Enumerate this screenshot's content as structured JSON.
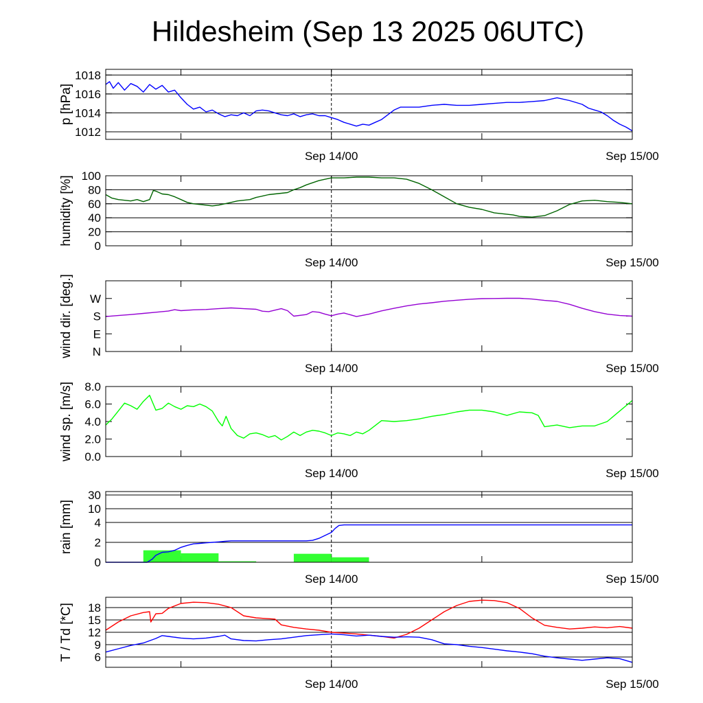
{
  "title": "Hildesheim (Sep 13 2025 06UTC)",
  "colors": {
    "pressure": "#0000ff",
    "humidity": "#006400",
    "wind_dir": "#9400d3",
    "wind_speed": "#00ff00",
    "rain_bar": "#33ff33",
    "rain_line": "#0000ff",
    "temperature": "#ff0000",
    "dewpoint": "#0000ff"
  },
  "chart_data": [
    {
      "type": "line",
      "ylabel": "p [hPa]",
      "x_unit": "hours since Sep 13 06UTC",
      "xlim": [
        0,
        42
      ],
      "x_tick_labels": [
        {
          "x": 18,
          "label": "Sep 14/00"
        },
        {
          "x": 42,
          "label": "Sep 15/00"
        }
      ],
      "ylim": [
        1011.2,
        1018.6
      ],
      "y_ticks": [
        {
          "v": 1012,
          "label": "1012"
        },
        {
          "v": 1014,
          "label": "1014"
        },
        {
          "v": 1016,
          "label": "1016"
        },
        {
          "v": 1018,
          "label": "1018"
        }
      ],
      "grid": true,
      "series": [
        {
          "color_key": "pressure",
          "x": [
            0,
            0.3,
            0.6,
            1.0,
            1.5,
            2.0,
            2.5,
            3.0,
            3.5,
            4.0,
            4.5,
            5.0,
            5.5,
            6.0,
            6.5,
            7.0,
            7.5,
            8.0,
            8.5,
            9.0,
            9.5,
            10.0,
            10.5,
            11.0,
            11.5,
            12.0,
            12.5,
            13.0,
            13.5,
            14.0,
            14.5,
            15.0,
            15.5,
            16.0,
            16.5,
            17.0,
            17.5,
            18.0,
            18.5,
            19.0,
            19.5,
            20.0,
            20.5,
            21.0,
            21.5,
            22.0,
            22.5,
            23.0,
            23.5,
            24.0,
            25.0,
            26.0,
            27.0,
            28.0,
            29.0,
            30.0,
            31.0,
            32.0,
            33.0,
            34.0,
            35.0,
            36.0,
            37.0,
            38.0,
            38.5,
            39.0,
            39.5,
            40.0,
            40.5,
            41.0,
            41.5,
            42.0
          ],
          "y": [
            1017.0,
            1017.3,
            1016.6,
            1017.2,
            1016.4,
            1017.1,
            1016.8,
            1016.2,
            1017.0,
            1016.5,
            1016.9,
            1016.2,
            1016.4,
            1015.6,
            1014.9,
            1014.4,
            1014.6,
            1014.1,
            1014.3,
            1013.9,
            1013.6,
            1013.8,
            1013.7,
            1014.0,
            1013.7,
            1014.2,
            1014.3,
            1014.2,
            1014.0,
            1013.8,
            1013.7,
            1013.9,
            1013.6,
            1013.8,
            1013.9,
            1013.7,
            1013.7,
            1013.5,
            1013.3,
            1013.0,
            1012.8,
            1012.6,
            1012.8,
            1012.7,
            1013.0,
            1013.3,
            1013.8,
            1014.3,
            1014.6,
            1014.6,
            1014.6,
            1014.8,
            1014.9,
            1014.8,
            1014.8,
            1014.9,
            1015.0,
            1015.1,
            1015.1,
            1015.2,
            1015.3,
            1015.6,
            1015.3,
            1014.9,
            1014.5,
            1014.3,
            1014.1,
            1013.7,
            1013.2,
            1012.8,
            1012.5,
            1012.1
          ]
        }
      ]
    },
    {
      "type": "line",
      "ylabel": "humidity [%]",
      "xlim": [
        0,
        42
      ],
      "x_tick_labels": [
        {
          "x": 18,
          "label": "Sep 14/00"
        },
        {
          "x": 42,
          "label": "Sep 15/00"
        }
      ],
      "ylim": [
        0,
        100
      ],
      "y_ticks": [
        {
          "v": 0,
          "label": "0"
        },
        {
          "v": 20,
          "label": "20"
        },
        {
          "v": 40,
          "label": "40"
        },
        {
          "v": 60,
          "label": "60"
        },
        {
          "v": 80,
          "label": "80"
        },
        {
          "v": 100,
          "label": "100"
        }
      ],
      "grid": true,
      "series": [
        {
          "color_key": "humidity",
          "x": [
            0,
            0.5,
            1.0,
            1.5,
            2.0,
            2.5,
            3.0,
            3.5,
            3.8,
            4.0,
            4.5,
            5.0,
            5.5,
            6.0,
            6.5,
            7.0,
            7.5,
            8.0,
            8.5,
            9.0,
            9.5,
            10.0,
            10.5,
            11.0,
            11.5,
            12.0,
            12.5,
            13.0,
            13.5,
            14.0,
            14.5,
            15.0,
            15.5,
            16.0,
            16.5,
            17.0,
            17.5,
            18.0,
            19.0,
            20.0,
            21.0,
            22.0,
            23.0,
            24.0,
            25.0,
            26.0,
            27.0,
            28.0,
            29.0,
            30.0,
            31.0,
            32.0,
            32.5,
            33.0,
            34.0,
            35.0,
            36.0,
            37.0,
            38.0,
            39.0,
            40.0,
            41.0,
            42.0
          ],
          "y": [
            73,
            68,
            66,
            65,
            64,
            66,
            63,
            66,
            79,
            78,
            74,
            73,
            70,
            66,
            62,
            60,
            59,
            58,
            57,
            58,
            60,
            62,
            64,
            65,
            66,
            69,
            71,
            73,
            74,
            75,
            76,
            80,
            83,
            87,
            90,
            93,
            95,
            97,
            97,
            98,
            98,
            97,
            97,
            95,
            89,
            80,
            70,
            60,
            55,
            52,
            47,
            45,
            44,
            42,
            41,
            43,
            50,
            59,
            64,
            65,
            63,
            62,
            60
          ]
        }
      ]
    },
    {
      "type": "line",
      "ylabel": "wind dir. [deg.]",
      "xlim": [
        0,
        42
      ],
      "x_tick_labels": [
        {
          "x": 18,
          "label": "Sep 14/00"
        },
        {
          "x": 42,
          "label": "Sep 15/00"
        }
      ],
      "ylim": [
        0,
        360
      ],
      "y_ticks": [
        {
          "v": 0,
          "label": "N"
        },
        {
          "v": 90,
          "label": "E"
        },
        {
          "v": 180,
          "label": "S"
        },
        {
          "v": 270,
          "label": "W"
        }
      ],
      "grid": false,
      "series": [
        {
          "color_key": "wind_dir",
          "x": [
            0,
            1,
            2,
            3,
            4,
            5,
            5.5,
            6,
            7,
            8,
            9,
            10,
            11,
            12,
            12.5,
            13,
            14,
            14.5,
            15,
            16,
            16.5,
            17,
            17.5,
            18,
            18.5,
            19,
            20,
            21,
            22,
            23,
            24,
            25,
            26,
            27,
            28,
            29,
            30,
            31,
            32,
            33,
            34,
            35,
            36,
            37,
            38,
            39,
            40,
            41,
            42
          ],
          "y": [
            178,
            183,
            188,
            194,
            200,
            206,
            213,
            208,
            212,
            214,
            218,
            222,
            218,
            215,
            205,
            203,
            218,
            208,
            180,
            188,
            203,
            200,
            190,
            182,
            190,
            196,
            178,
            190,
            207,
            220,
            232,
            242,
            248,
            256,
            261,
            266,
            269,
            270,
            271,
            271,
            267,
            260,
            255,
            240,
            220,
            203,
            190,
            183,
            180
          ]
        }
      ]
    },
    {
      "type": "line",
      "ylabel": "wind sp. [m/s]",
      "xlim": [
        0,
        42
      ],
      "x_tick_labels": [
        {
          "x": 18,
          "label": "Sep 14/00"
        },
        {
          "x": 42,
          "label": "Sep 15/00"
        }
      ],
      "ylim": [
        0,
        8
      ],
      "y_ticks": [
        {
          "v": 0,
          "label": "0.0"
        },
        {
          "v": 2,
          "label": "2.0"
        },
        {
          "v": 4,
          "label": "4.0"
        },
        {
          "v": 6,
          "label": "6.0"
        },
        {
          "v": 8,
          "label": "8.0"
        }
      ],
      "grid": false,
      "series": [
        {
          "color_key": "wind_speed",
          "x": [
            0,
            0.5,
            1,
            1.5,
            2,
            2.5,
            3,
            3.5,
            4,
            4.5,
            5,
            5.5,
            6,
            6.5,
            7,
            7.5,
            8,
            8.5,
            9,
            9.3,
            9.6,
            10,
            10.5,
            11,
            11.5,
            12,
            12.5,
            13,
            13.5,
            14,
            14.5,
            15,
            15.5,
            16,
            16.5,
            17,
            17.5,
            18,
            18.5,
            19,
            19.5,
            20,
            20.5,
            21,
            22,
            23,
            24,
            25,
            26,
            27,
            28,
            29,
            30,
            31,
            32,
            33,
            34,
            34.5,
            35,
            36,
            37,
            38,
            39,
            40,
            41,
            42
          ],
          "y": [
            3.6,
            4.3,
            5.2,
            6.1,
            5.8,
            5.4,
            6.3,
            7.0,
            5.3,
            5.5,
            6.1,
            5.7,
            5.4,
            5.8,
            5.7,
            6.0,
            5.7,
            5.2,
            4.0,
            3.5,
            4.6,
            3.2,
            2.4,
            2.1,
            2.6,
            2.7,
            2.5,
            2.2,
            2.4,
            1.9,
            2.3,
            2.8,
            2.4,
            2.8,
            3.0,
            2.9,
            2.7,
            2.4,
            2.7,
            2.6,
            2.4,
            2.8,
            2.6,
            3.0,
            4.1,
            4.0,
            4.1,
            4.3,
            4.6,
            4.8,
            5.1,
            5.3,
            5.3,
            5.1,
            4.7,
            5.1,
            5.0,
            4.7,
            3.4,
            3.6,
            3.3,
            3.5,
            3.5,
            4.0,
            5.2,
            6.4
          ]
        }
      ]
    },
    {
      "type": "bar",
      "ylabel": "rain [mm]",
      "xlim": [
        0,
        42
      ],
      "x_tick_labels": [
        {
          "x": 18,
          "label": "Sep 14/00"
        },
        {
          "x": 42,
          "label": "Sep 15/00"
        }
      ],
      "y_ticks": [
        {
          "v": 0,
          "label": "0"
        },
        {
          "v": 2,
          "label": "2"
        },
        {
          "v": 4,
          "label": "4"
        },
        {
          "v": 10,
          "label": "10"
        },
        {
          "v": 30,
          "label": "30"
        }
      ],
      "grid": true,
      "bars": {
        "color_key": "rain_bar",
        "width_hours": 3,
        "x": [
          4.5,
          7.5,
          10.5,
          16.5,
          19.5
        ],
        "values": [
          1.2,
          0.9,
          0.1,
          0.85,
          0.5
        ]
      },
      "series": [
        {
          "color_key": "rain_line",
          "x": [
            0,
            3.3,
            3.7,
            4.0,
            4.5,
            5.0,
            5.5,
            6.0,
            6.5,
            7.0,
            7.5,
            8.0,
            8.5,
            9.0,
            9.5,
            10.0,
            11.0,
            12.0,
            13.0,
            14.0,
            15.0,
            16.0,
            16.5,
            17.0,
            17.5,
            18.0,
            18.3,
            18.6,
            19.0,
            20.0,
            22.0,
            24.0,
            26.0,
            28.0,
            30.0,
            32.0,
            34.0,
            36.0,
            38.0,
            40.0,
            42.0
          ],
          "y": [
            0.0,
            0.0,
            0.3,
            0.7,
            1.0,
            1.05,
            1.2,
            1.5,
            1.7,
            1.85,
            1.9,
            1.95,
            2.0,
            2.05,
            2.1,
            2.15,
            2.15,
            2.15,
            2.15,
            2.15,
            2.15,
            2.15,
            2.2,
            2.4,
            2.7,
            3.0,
            3.4,
            3.7,
            3.75,
            3.75,
            3.75,
            3.75,
            3.75,
            3.75,
            3.75,
            3.75,
            3.75,
            3.75,
            3.75,
            3.75,
            3.75
          ]
        }
      ]
    },
    {
      "type": "line",
      "ylabel": "T / Td [*C]",
      "xlim": [
        0,
        42
      ],
      "x_tick_labels": [
        {
          "x": 18,
          "label": "Sep 14/00"
        },
        {
          "x": 42,
          "label": "Sep 15/00"
        }
      ],
      "ylim": [
        3.5,
        20.5
      ],
      "y_ticks": [
        {
          "v": 6,
          "label": "6"
        },
        {
          "v": 9,
          "label": "9"
        },
        {
          "v": 12,
          "label": "12"
        },
        {
          "v": 15,
          "label": "15"
        },
        {
          "v": 18,
          "label": "18"
        }
      ],
      "grid": true,
      "series": [
        {
          "color_key": "temperature",
          "x": [
            0,
            1,
            2,
            3,
            3.5,
            3.6,
            4,
            4.5,
            5,
            6,
            7,
            8,
            9,
            10,
            11,
            12,
            13,
            13.5,
            14,
            15,
            16,
            17,
            18,
            19,
            20,
            21,
            22,
            23,
            24,
            25,
            26,
            27,
            28,
            29,
            30,
            31,
            32,
            33,
            34,
            35,
            36,
            37,
            38,
            39,
            40,
            41,
            42
          ],
          "y": [
            12.5,
            14.5,
            16.0,
            16.8,
            17.0,
            14.5,
            16.5,
            16.6,
            17.8,
            19.0,
            19.3,
            19.2,
            18.8,
            18.0,
            16.0,
            15.5,
            15.3,
            15.2,
            13.8,
            13.2,
            12.8,
            12.5,
            12.0,
            11.8,
            11.6,
            11.3,
            11.0,
            10.6,
            11.5,
            13.0,
            15.0,
            17.0,
            18.5,
            19.5,
            19.8,
            19.7,
            19.2,
            17.8,
            15.5,
            13.7,
            13.2,
            12.8,
            13.0,
            13.3,
            13.1,
            13.4,
            13.0
          ]
        },
        {
          "color_key": "dewpoint",
          "x": [
            0,
            1,
            2,
            3,
            4,
            4.5,
            5,
            6,
            7,
            8,
            9,
            9.5,
            10,
            11,
            12,
            13,
            14,
            15,
            16,
            17,
            18,
            19,
            20,
            21,
            22,
            23,
            24,
            25,
            26,
            27,
            28,
            29,
            30,
            31,
            32,
            33,
            34,
            35,
            36,
            37,
            38,
            39,
            40,
            41,
            42
          ],
          "y": [
            7.2,
            8.0,
            8.8,
            9.4,
            10.5,
            11.2,
            11.0,
            10.6,
            10.4,
            10.6,
            11.0,
            11.3,
            10.4,
            10.0,
            9.9,
            10.2,
            10.4,
            10.8,
            11.2,
            11.4,
            11.6,
            11.4,
            11.1,
            11.3,
            11.0,
            10.8,
            10.9,
            10.8,
            10.2,
            9.2,
            9.0,
            8.6,
            8.3,
            7.9,
            7.5,
            7.2,
            6.8,
            6.2,
            5.8,
            5.5,
            5.2,
            5.5,
            5.8,
            5.6,
            4.7
          ]
        }
      ]
    }
  ]
}
